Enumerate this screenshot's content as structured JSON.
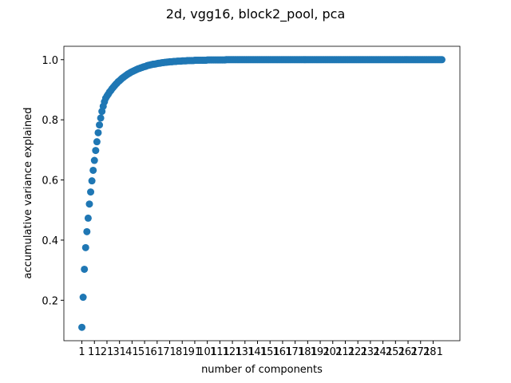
{
  "chart_data": {
    "type": "scatter",
    "title": "2d, vgg16, block2_pool, pca",
    "x_label": "number of components",
    "y_label": "accumulative variance explained",
    "color": "#1f77b4",
    "x": [
      1,
      2,
      3,
      4,
      5,
      6,
      7,
      8,
      9,
      10,
      11,
      12,
      13,
      14,
      15,
      16,
      17,
      18,
      19,
      20,
      21,
      22,
      23,
      24,
      25,
      26,
      27,
      28,
      29,
      30,
      31,
      32,
      33,
      34,
      35,
      36,
      37,
      38,
      39,
      40,
      41,
      42,
      43,
      44,
      45,
      46,
      47,
      48,
      49,
      50,
      51,
      52,
      53,
      54,
      55,
      56,
      57,
      58,
      59,
      60,
      61,
      62,
      63,
      64,
      65,
      66,
      67,
      68,
      69,
      70,
      71,
      72,
      73,
      74,
      75,
      76,
      77,
      78,
      79,
      80,
      81,
      82,
      83,
      84,
      85,
      86,
      87,
      88,
      89,
      90,
      91,
      92,
      93,
      94,
      95,
      96,
      97,
      98,
      99,
      100,
      101,
      102,
      103,
      104,
      105,
      106,
      107,
      108,
      109,
      110,
      111,
      112,
      113,
      114,
      115,
      116,
      117,
      118,
      119,
      120,
      121,
      122,
      123,
      124,
      125,
      126,
      127,
      128,
      129,
      130,
      131,
      132,
      133,
      134,
      135,
      136,
      137,
      138,
      139,
      140,
      141,
      142,
      143,
      144,
      145,
      146,
      147,
      148,
      149,
      150,
      151,
      152,
      153,
      154,
      155,
      156,
      157,
      158,
      159,
      160,
      161,
      162,
      163,
      164,
      165,
      166,
      167,
      168,
      169,
      170,
      171,
      172,
      173,
      174,
      175,
      176,
      177,
      178,
      179,
      180,
      181,
      182,
      183,
      184,
      185,
      186,
      187,
      188,
      189,
      190,
      191,
      192,
      193,
      194,
      195,
      196,
      197,
      198,
      199,
      200,
      201,
      202,
      203,
      204,
      205,
      206,
      207,
      208,
      209,
      210,
      211,
      212,
      213,
      214,
      215,
      216,
      217,
      218,
      219,
      220,
      221,
      222,
      223,
      224,
      225,
      226,
      227,
      228,
      229,
      230,
      231,
      232,
      233,
      234,
      235,
      236,
      237,
      238,
      239,
      240,
      241,
      242,
      243,
      244,
      245,
      246,
      247,
      248,
      249,
      250,
      251,
      252,
      253,
      254,
      255,
      256,
      257,
      258,
      259,
      260,
      261,
      262,
      263,
      264,
      265,
      266,
      267,
      268,
      269,
      270,
      271,
      272,
      273,
      274,
      275,
      276,
      277,
      278,
      279,
      280,
      281,
      282,
      283,
      284,
      285,
      286,
      287,
      288
    ],
    "values": [
      0.11,
      0.21,
      0.303,
      0.375,
      0.428,
      0.473,
      0.52,
      0.56,
      0.597,
      0.632,
      0.665,
      0.698,
      0.727,
      0.757,
      0.783,
      0.806,
      0.828,
      0.845,
      0.86,
      0.872,
      0.879,
      0.885,
      0.892,
      0.897,
      0.903,
      0.908,
      0.913,
      0.918,
      0.922,
      0.927,
      0.93,
      0.934,
      0.938,
      0.941,
      0.944,
      0.947,
      0.95,
      0.953,
      0.955,
      0.958,
      0.96,
      0.962,
      0.964,
      0.966,
      0.968,
      0.97,
      0.971,
      0.973,
      0.974,
      0.976,
      0.977,
      0.978,
      0.98,
      0.981,
      0.982,
      0.983,
      0.984,
      0.985,
      0.985,
      0.986,
      0.987,
      0.988,
      0.988,
      0.989,
      0.99,
      0.99,
      0.991,
      0.991,
      0.992,
      0.992,
      0.993,
      0.993,
      0.993,
      0.994,
      0.994,
      0.994,
      0.995,
      0.995,
      0.995,
      0.995,
      0.996,
      0.996,
      0.996,
      0.996,
      0.997,
      0.997,
      0.997,
      0.997,
      0.997,
      0.997,
      0.998,
      0.998,
      0.998,
      0.998,
      0.998,
      0.998,
      0.998,
      0.998,
      0.998,
      0.998,
      0.999,
      0.999,
      0.999,
      0.999,
      0.999,
      0.999,
      0.999,
      0.999,
      0.999,
      0.999,
      0.999,
      0.999,
      0.999,
      0.999,
      0.999,
      1,
      1,
      1,
      1,
      1,
      1,
      1,
      1,
      1,
      1,
      1,
      1,
      1,
      1,
      1,
      1,
      1,
      1,
      1,
      1,
      1,
      1,
      1,
      1,
      1,
      1,
      1,
      1,
      1,
      1,
      1,
      1,
      1,
      1,
      1,
      1,
      1,
      1,
      1,
      1,
      1,
      1,
      1,
      1,
      1,
      1,
      1,
      1,
      1,
      1,
      1,
      1,
      1,
      1,
      1,
      1,
      1,
      1,
      1,
      1,
      1,
      1,
      1,
      1,
      1,
      1,
      1,
      1,
      1,
      1,
      1,
      1,
      1,
      1,
      1,
      1,
      1,
      1,
      1,
      1,
      1,
      1,
      1,
      1,
      1,
      1,
      1,
      1,
      1,
      1,
      1,
      1,
      1,
      1,
      1,
      1,
      1,
      1,
      1,
      1,
      1,
      1,
      1,
      1,
      1,
      1,
      1,
      1,
      1,
      1,
      1,
      1,
      1,
      1,
      1,
      1,
      1,
      1,
      1,
      1,
      1,
      1,
      1,
      1,
      1,
      1,
      1,
      1,
      1,
      1,
      1,
      1,
      1,
      1,
      1,
      1,
      1,
      1,
      1,
      1,
      1,
      1,
      1,
      1,
      1,
      1,
      1,
      1,
      1,
      1,
      1,
      1,
      1,
      1,
      1,
      1,
      1,
      1,
      1,
      1,
      1,
      1,
      1,
      1,
      1,
      1,
      1,
      1,
      1,
      1,
      1,
      1,
      1
    ],
    "xlim": [
      -13.35,
      302.35
    ],
    "xticks": [
      1,
      11,
      21,
      31,
      41,
      51,
      61,
      71,
      81,
      91,
      101,
      111,
      121,
      131,
      141,
      151,
      161,
      171,
      181,
      191,
      201,
      211,
      221,
      231,
      241,
      251,
      261,
      271,
      281
    ],
    "ylim": [
      0.0655,
      1.0445
    ],
    "yticks": [
      0.2,
      0.4,
      0.6,
      0.8,
      {
        "value": 1,
        "label": "1.0"
      }
    ]
  }
}
